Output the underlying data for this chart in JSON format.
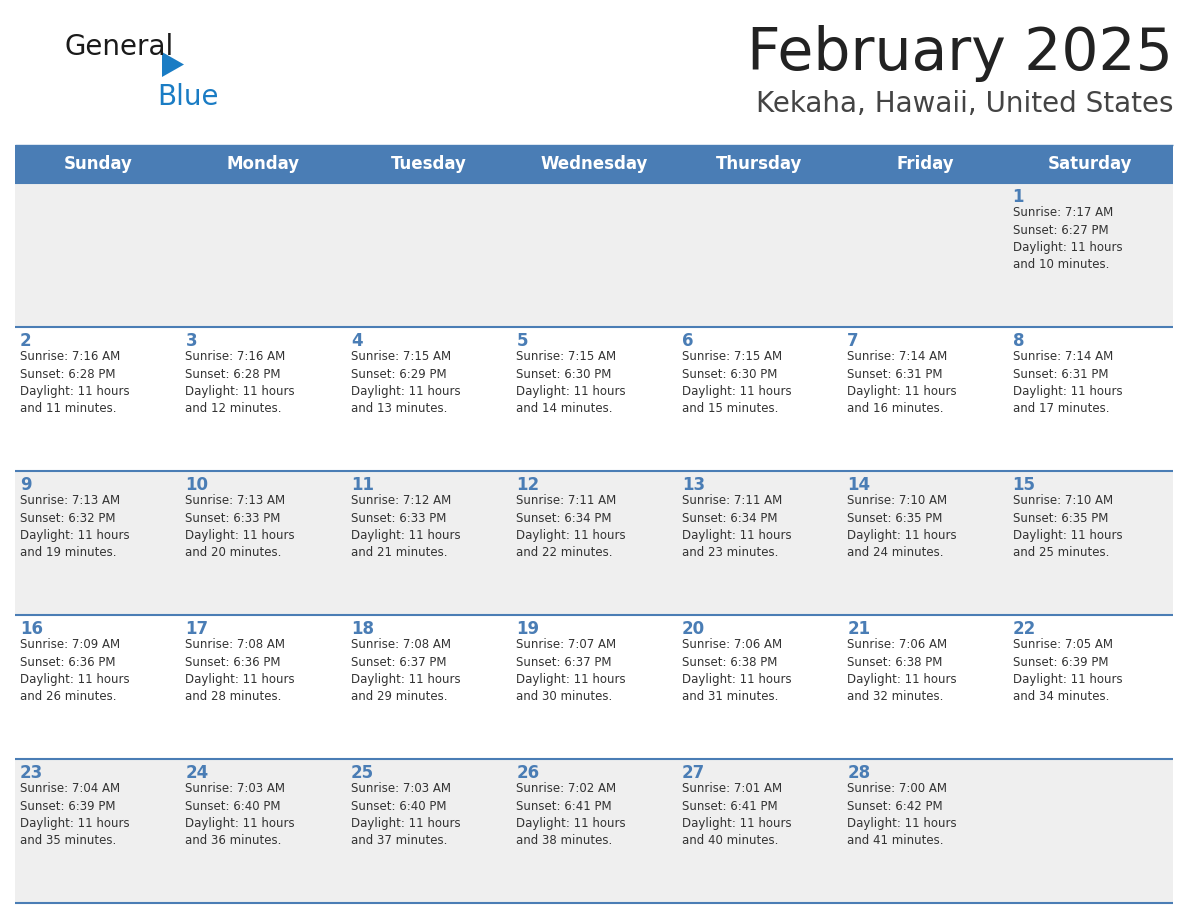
{
  "title": "February 2025",
  "subtitle": "Kekaha, Hawaii, United States",
  "header_bg": "#4A7DB5",
  "header_text_color": "#FFFFFF",
  "cell_bg_odd": "#EFEFEF",
  "cell_bg_even": "#FFFFFF",
  "day_names": [
    "Sunday",
    "Monday",
    "Tuesday",
    "Wednesday",
    "Thursday",
    "Friday",
    "Saturday"
  ],
  "title_color": "#222222",
  "subtitle_color": "#444444",
  "line_color": "#4A7DB5",
  "day_number_color": "#4A7DB5",
  "info_text_color": "#333333",
  "logo_general_color": "#1a1a1a",
  "logo_blue_color": "#1a7cc4",
  "weeks": [
    [
      {
        "day": null,
        "info": null
      },
      {
        "day": null,
        "info": null
      },
      {
        "day": null,
        "info": null
      },
      {
        "day": null,
        "info": null
      },
      {
        "day": null,
        "info": null
      },
      {
        "day": null,
        "info": null
      },
      {
        "day": 1,
        "info": "Sunrise: 7:17 AM\nSunset: 6:27 PM\nDaylight: 11 hours\nand 10 minutes."
      }
    ],
    [
      {
        "day": 2,
        "info": "Sunrise: 7:16 AM\nSunset: 6:28 PM\nDaylight: 11 hours\nand 11 minutes."
      },
      {
        "day": 3,
        "info": "Sunrise: 7:16 AM\nSunset: 6:28 PM\nDaylight: 11 hours\nand 12 minutes."
      },
      {
        "day": 4,
        "info": "Sunrise: 7:15 AM\nSunset: 6:29 PM\nDaylight: 11 hours\nand 13 minutes."
      },
      {
        "day": 5,
        "info": "Sunrise: 7:15 AM\nSunset: 6:30 PM\nDaylight: 11 hours\nand 14 minutes."
      },
      {
        "day": 6,
        "info": "Sunrise: 7:15 AM\nSunset: 6:30 PM\nDaylight: 11 hours\nand 15 minutes."
      },
      {
        "day": 7,
        "info": "Sunrise: 7:14 AM\nSunset: 6:31 PM\nDaylight: 11 hours\nand 16 minutes."
      },
      {
        "day": 8,
        "info": "Sunrise: 7:14 AM\nSunset: 6:31 PM\nDaylight: 11 hours\nand 17 minutes."
      }
    ],
    [
      {
        "day": 9,
        "info": "Sunrise: 7:13 AM\nSunset: 6:32 PM\nDaylight: 11 hours\nand 19 minutes."
      },
      {
        "day": 10,
        "info": "Sunrise: 7:13 AM\nSunset: 6:33 PM\nDaylight: 11 hours\nand 20 minutes."
      },
      {
        "day": 11,
        "info": "Sunrise: 7:12 AM\nSunset: 6:33 PM\nDaylight: 11 hours\nand 21 minutes."
      },
      {
        "day": 12,
        "info": "Sunrise: 7:11 AM\nSunset: 6:34 PM\nDaylight: 11 hours\nand 22 minutes."
      },
      {
        "day": 13,
        "info": "Sunrise: 7:11 AM\nSunset: 6:34 PM\nDaylight: 11 hours\nand 23 minutes."
      },
      {
        "day": 14,
        "info": "Sunrise: 7:10 AM\nSunset: 6:35 PM\nDaylight: 11 hours\nand 24 minutes."
      },
      {
        "day": 15,
        "info": "Sunrise: 7:10 AM\nSunset: 6:35 PM\nDaylight: 11 hours\nand 25 minutes."
      }
    ],
    [
      {
        "day": 16,
        "info": "Sunrise: 7:09 AM\nSunset: 6:36 PM\nDaylight: 11 hours\nand 26 minutes."
      },
      {
        "day": 17,
        "info": "Sunrise: 7:08 AM\nSunset: 6:36 PM\nDaylight: 11 hours\nand 28 minutes."
      },
      {
        "day": 18,
        "info": "Sunrise: 7:08 AM\nSunset: 6:37 PM\nDaylight: 11 hours\nand 29 minutes."
      },
      {
        "day": 19,
        "info": "Sunrise: 7:07 AM\nSunset: 6:37 PM\nDaylight: 11 hours\nand 30 minutes."
      },
      {
        "day": 20,
        "info": "Sunrise: 7:06 AM\nSunset: 6:38 PM\nDaylight: 11 hours\nand 31 minutes."
      },
      {
        "day": 21,
        "info": "Sunrise: 7:06 AM\nSunset: 6:38 PM\nDaylight: 11 hours\nand 32 minutes."
      },
      {
        "day": 22,
        "info": "Sunrise: 7:05 AM\nSunset: 6:39 PM\nDaylight: 11 hours\nand 34 minutes."
      }
    ],
    [
      {
        "day": 23,
        "info": "Sunrise: 7:04 AM\nSunset: 6:39 PM\nDaylight: 11 hours\nand 35 minutes."
      },
      {
        "day": 24,
        "info": "Sunrise: 7:03 AM\nSunset: 6:40 PM\nDaylight: 11 hours\nand 36 minutes."
      },
      {
        "day": 25,
        "info": "Sunrise: 7:03 AM\nSunset: 6:40 PM\nDaylight: 11 hours\nand 37 minutes."
      },
      {
        "day": 26,
        "info": "Sunrise: 7:02 AM\nSunset: 6:41 PM\nDaylight: 11 hours\nand 38 minutes."
      },
      {
        "day": 27,
        "info": "Sunrise: 7:01 AM\nSunset: 6:41 PM\nDaylight: 11 hours\nand 40 minutes."
      },
      {
        "day": 28,
        "info": "Sunrise: 7:00 AM\nSunset: 6:42 PM\nDaylight: 11 hours\nand 41 minutes."
      },
      {
        "day": null,
        "info": null
      }
    ]
  ]
}
